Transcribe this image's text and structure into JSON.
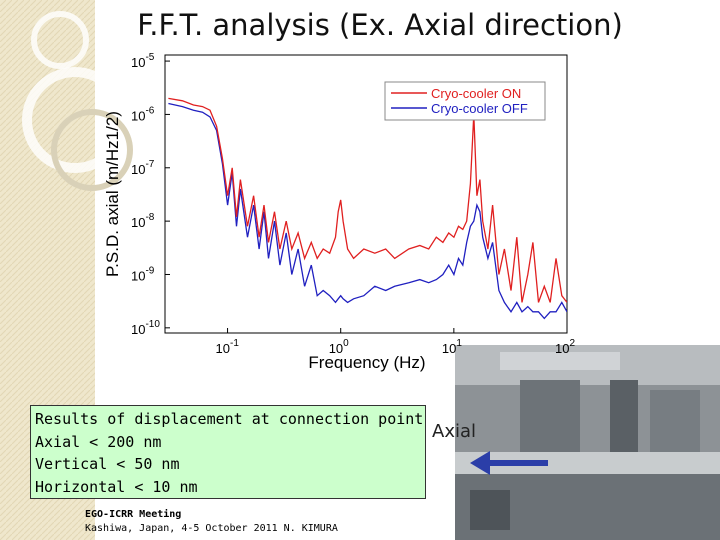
{
  "title": "F.F.T. analysis (Ex. Axial direction)",
  "textbox": [
    "Results of displacement at connection point",
    "Axial < 200 nm",
    "Vertical < 50 nm",
    "Horizontal < 10 nm"
  ],
  "footer": {
    "event": "EGO-ICRR Meeting",
    "place": "Kashiwa, Japan, 4-5 October 2011 N. KIMURA"
  },
  "photo_label": "Axial",
  "chart_data": {
    "type": "line",
    "xlabel": "Frequency (Hz)",
    "ylabel": "P.S.D. axial (m/Hz1/2)",
    "xlog": true,
    "ylog": true,
    "legend": "upper right",
    "xlim": [
      0.028,
      100
    ],
    "ylim": [
      8e-11,
      1.3e-05
    ],
    "xticks": [
      {
        "value": 0.1,
        "label": "10-1"
      },
      {
        "value": 1,
        "label": "100"
      },
      {
        "value": 10,
        "label": "101"
      },
      {
        "value": 100,
        "label": "102"
      }
    ],
    "yticks": [
      {
        "value": 1e-05,
        "label": "10-5"
      },
      {
        "value": 1e-06,
        "label": "10-6"
      },
      {
        "value": 1e-07,
        "label": "10-7"
      },
      {
        "value": 1e-08,
        "label": "10-8"
      },
      {
        "value": 1e-09,
        "label": "10-9"
      },
      {
        "value": 1e-10,
        "label": "10-10"
      }
    ],
    "x": [
      0.03,
      0.04,
      0.05,
      0.06,
      0.07,
      0.08,
      0.09,
      0.1,
      0.11,
      0.12,
      0.13,
      0.15,
      0.17,
      0.19,
      0.21,
      0.23,
      0.26,
      0.29,
      0.33,
      0.37,
      0.42,
      0.48,
      0.55,
      0.62,
      0.7,
      0.8,
      0.9,
      0.95,
      1.0,
      1.05,
      1.15,
      1.3,
      1.6,
      2,
      2.5,
      3,
      4,
      5,
      6,
      7,
      8,
      9,
      10,
      11,
      12,
      13,
      14,
      15,
      16,
      17,
      18,
      20,
      22,
      25,
      28,
      32,
      36,
      40,
      45,
      50,
      56,
      63,
      71,
      80,
      90,
      100
    ],
    "series": [
      {
        "name": "Cryo-cooler ON",
        "color": "#e02020",
        "values": [
          2e-06,
          1.8e-06,
          1.5e-06,
          1.4e-06,
          1.2e-06,
          6e-07,
          1.5e-07,
          3e-08,
          1e-07,
          1.2e-08,
          6e-08,
          8e-09,
          3e-08,
          5e-09,
          2e-08,
          4e-09,
          1.5e-08,
          3e-09,
          1e-08,
          3e-09,
          6e-09,
          2e-09,
          4e-09,
          2e-09,
          3e-09,
          2.5e-09,
          5e-09,
          1.5e-08,
          2.5e-08,
          1e-08,
          3e-09,
          2e-09,
          3e-09,
          2.5e-09,
          3e-09,
          2e-09,
          3e-09,
          3.5e-09,
          3e-09,
          5e-09,
          4e-09,
          6e-09,
          5e-09,
          8e-09,
          7e-09,
          1e-08,
          5e-08,
          1e-06,
          3e-08,
          6e-08,
          1e-08,
          3e-09,
          2e-08,
          1e-09,
          3e-09,
          5e-10,
          5e-09,
          3e-10,
          1e-09,
          4e-09,
          3e-10,
          6e-10,
          3e-10,
          2e-09,
          4e-10,
          3e-10
        ]
      },
      {
        "name": "Cryo-cooler OFF",
        "color": "#2020c0",
        "values": [
          1.6e-06,
          1.4e-06,
          1.2e-06,
          1.1e-06,
          9e-07,
          5e-07,
          1.2e-07,
          2e-08,
          8e-08,
          8e-09,
          4e-08,
          5e-09,
          2e-08,
          3e-09,
          1.5e-08,
          2e-09,
          1e-08,
          1.5e-09,
          6e-09,
          1e-09,
          3e-09,
          6e-10,
          1.5e-09,
          4e-10,
          5e-10,
          4e-10,
          3e-10,
          3.5e-10,
          4e-10,
          3.5e-10,
          3e-10,
          3.5e-10,
          4e-10,
          6e-10,
          5e-10,
          6e-10,
          7e-10,
          8e-10,
          7e-10,
          8e-10,
          1e-09,
          1.5e-09,
          1e-09,
          2e-09,
          1.5e-09,
          4e-09,
          8e-09,
          1e-08,
          2e-08,
          1.5e-08,
          5e-09,
          2e-09,
          4e-09,
          5e-10,
          3e-10,
          2e-10,
          3e-10,
          2e-10,
          2.5e-10,
          2e-10,
          2e-10,
          1.5e-10,
          2e-10,
          2e-10,
          3e-10,
          2e-10
        ]
      }
    ]
  }
}
